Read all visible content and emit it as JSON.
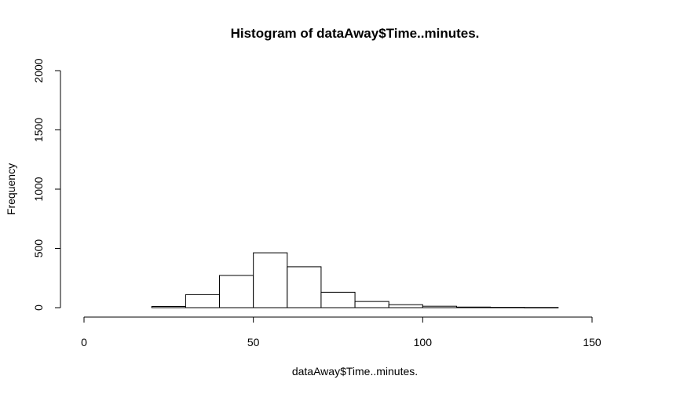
{
  "chart_data": {
    "type": "bar",
    "subtype": "histogram",
    "title": "Histogram of dataAway$Time..minutes.",
    "xlabel": "dataAway$Time..minutes.",
    "ylabel": "Frequency",
    "bins": [
      {
        "start": 20,
        "end": 30,
        "count": 10
      },
      {
        "start": 30,
        "end": 40,
        "count": 110
      },
      {
        "start": 40,
        "end": 50,
        "count": 272
      },
      {
        "start": 50,
        "end": 60,
        "count": 463
      },
      {
        "start": 60,
        "end": 70,
        "count": 345
      },
      {
        "start": 70,
        "end": 80,
        "count": 130
      },
      {
        "start": 80,
        "end": 90,
        "count": 52
      },
      {
        "start": 90,
        "end": 100,
        "count": 25
      },
      {
        "start": 100,
        "end": 110,
        "count": 12
      },
      {
        "start": 110,
        "end": 120,
        "count": 5
      },
      {
        "start": 120,
        "end": 130,
        "count": 3
      },
      {
        "start": 130,
        "end": 140,
        "count": 2
      }
    ],
    "xlim": [
      0,
      150
    ],
    "ylim": [
      0,
      2000
    ],
    "xticks": [
      "0",
      "50",
      "100",
      "150"
    ],
    "yticks": [
      "0",
      "500",
      "1000",
      "1500",
      "2000"
    ],
    "grid": false,
    "legend": "none",
    "colors": {
      "bar_fill": "#ffffff",
      "bar_stroke": "#000000",
      "axis": "#000000",
      "background": "#ffffff"
    }
  }
}
